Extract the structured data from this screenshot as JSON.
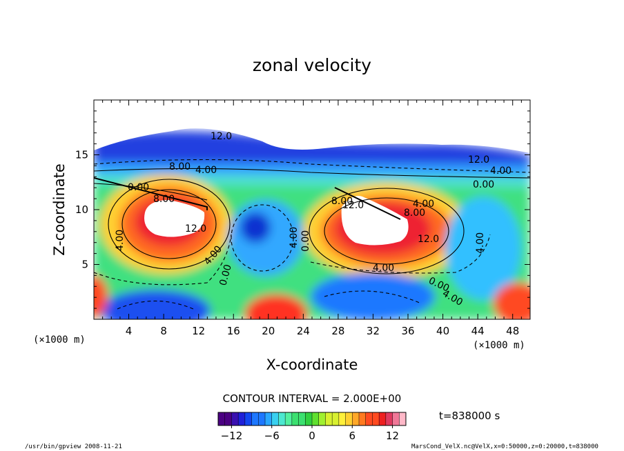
{
  "chart_data": {
    "type": "heatmap",
    "title": "zonal velocity",
    "xlabel": "X-coordinate",
    "ylabel": "Z-coordinate",
    "x_unit": "(×1000 m)",
    "xlim": [
      0,
      50
    ],
    "ylim": [
      0,
      20
    ],
    "x_ticks": [
      "4",
      "8",
      "12",
      "16",
      "20",
      "24",
      "28",
      "32",
      "36",
      "40",
      "44",
      "48"
    ],
    "y_ticks": [
      "5",
      "10",
      "15"
    ],
    "contour_interval_text": "CONTOUR INTERVAL = 2.000E+00",
    "colorbar": {
      "range": [
        -14,
        14
      ],
      "ticks": [
        "−12",
        "−6",
        "0",
        "6",
        "12"
      ],
      "colors": [
        "#4b0082",
        "#3a10b0",
        "#1f20d8",
        "#1246f0",
        "#1e78ff",
        "#2aa8ff",
        "#39d0f0",
        "#4ce8d0",
        "#52f0a0",
        "#3ce070",
        "#30d040",
        "#60e030",
        "#a0f030",
        "#d8f030",
        "#fff03a",
        "#ffd030",
        "#ffa828",
        "#ff7a20",
        "#ff4a20",
        "#ee2020",
        "#e03a60",
        "#f07898",
        "#ffb8c8"
      ]
    },
    "time_label": "t=838000 s",
    "contour_labels": [
      "12.0",
      "8.00",
      "4.00",
      "0.00",
      "8.00",
      "12.0",
      "4.00",
      "0.00",
      "4.00",
      "12.0",
      "4.00",
      "0.00",
      "4.00",
      "8.00",
      "12.0",
      "4.00",
      "0.00",
      "4.00",
      "12.0",
      "8.00",
      "4.00",
      "0.00",
      "4.00"
    ]
  },
  "footer": {
    "left": "/usr/bin/gpview   2008-11-21",
    "right": "MarsCond_VelX.nc@VelX,x=0:50000,z=0:20000,t=838000"
  }
}
